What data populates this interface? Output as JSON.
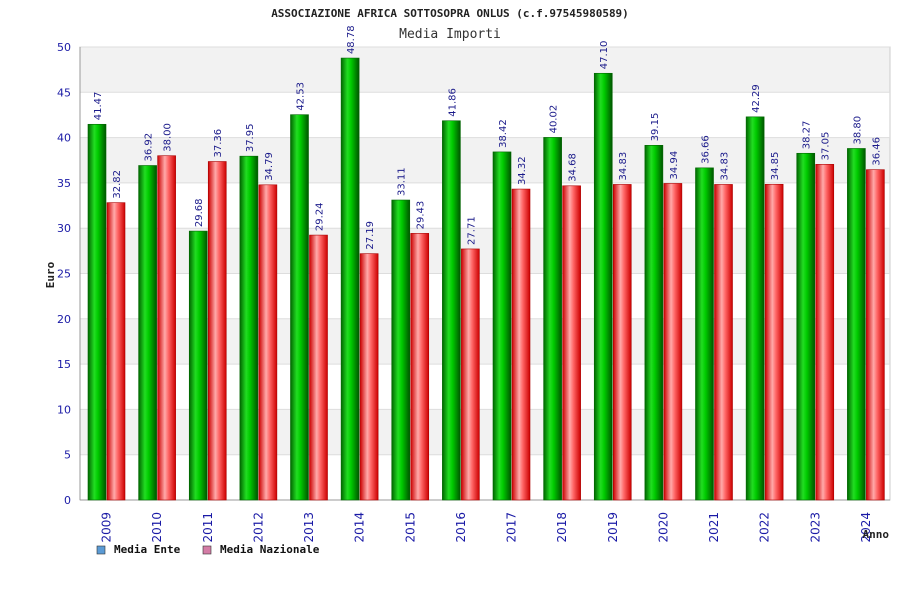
{
  "chart_data": {
    "type": "bar",
    "title": "ASSOCIAZIONE AFRICA SOTTOSOPRA ONLUS (c.f.97545980589)",
    "subtitle": "Media Importi",
    "xlabel": "Anno",
    "ylabel": "Euro",
    "ylim": [
      0,
      50
    ],
    "yticks": [
      0,
      5,
      10,
      15,
      20,
      25,
      30,
      35,
      40,
      45,
      50
    ],
    "grid": true,
    "legend_position": "bottom-left",
    "categories": [
      "2009",
      "2010",
      "2011",
      "2012",
      "2013",
      "2014",
      "2015",
      "2016",
      "2017",
      "2018",
      "2019",
      "2020",
      "2021",
      "2022",
      "2023",
      "2024"
    ],
    "series": [
      {
        "name": "Media Ente",
        "legend_color": "#5b9bd5",
        "bar_color": "#00aa00",
        "values": [
          41.47,
          36.92,
          29.68,
          37.95,
          42.53,
          48.78,
          33.11,
          41.86,
          38.42,
          40.02,
          47.1,
          39.15,
          36.66,
          42.29,
          38.27,
          38.8
        ],
        "labels": [
          "41.47",
          "36.92",
          "29.68",
          "37.95",
          "42.53",
          "48.78",
          "33.11",
          "41.86",
          "38.42",
          "40.02",
          "47.10",
          "39.15",
          "36.66",
          "42.29",
          "38.27",
          "38.80"
        ]
      },
      {
        "name": "Media Nazionale",
        "legend_color": "#d47ca6",
        "bar_color": "#dd1111",
        "values": [
          32.82,
          38.0,
          37.36,
          34.79,
          29.24,
          27.19,
          29.43,
          27.71,
          34.32,
          34.68,
          34.83,
          34.94,
          34.83,
          34.85,
          37.05,
          36.46
        ],
        "labels": [
          "32.82",
          "38.00",
          "37.36",
          "34.79",
          "29.24",
          "27.19",
          "29.43",
          "27.71",
          "34.32",
          "34.68",
          "34.83",
          "34.94",
          "34.83",
          "34.85",
          "37.05",
          "36.46"
        ]
      }
    ]
  }
}
